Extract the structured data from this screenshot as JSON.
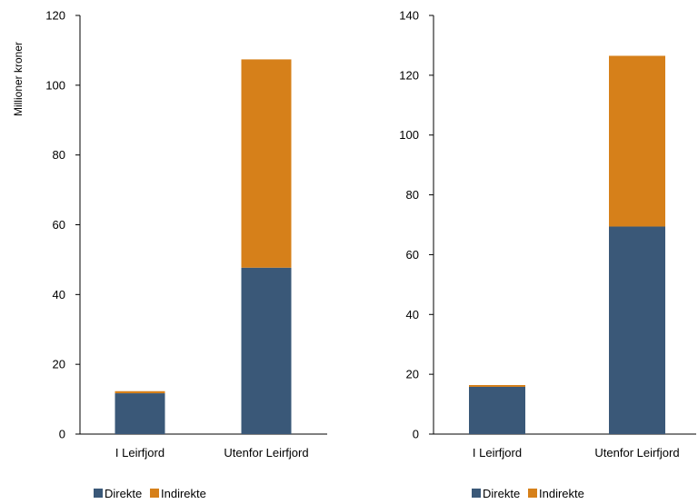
{
  "colors": {
    "direkte": "#3a5878",
    "indirekte": "#d6801a",
    "axis": "#000000"
  },
  "chart_data": [
    {
      "type": "bar",
      "stacked": true,
      "categories": [
        "I Leirfjord",
        "Utenfor Leirfjord"
      ],
      "series": [
        {
          "name": "Direkte",
          "values": [
            11.7,
            47.7
          ]
        },
        {
          "name": "Indirekte",
          "values": [
            0.6,
            59.7
          ]
        }
      ],
      "ylabel": "Millioner kroner",
      "ylim": [
        0,
        120
      ],
      "yticks": [
        0,
        20,
        40,
        60,
        80,
        100,
        120
      ],
      "legend": "bottom",
      "grid": false
    },
    {
      "type": "bar",
      "stacked": true,
      "categories": [
        "I Leirfjord",
        "Utenfor Leirfjord"
      ],
      "series": [
        {
          "name": "Direkte",
          "values": [
            15.8,
            69.4
          ]
        },
        {
          "name": "Indirekte",
          "values": [
            0.6,
            57.1
          ]
        }
      ],
      "ylabel": "",
      "ylim": [
        0,
        140
      ],
      "yticks": [
        0,
        20,
        40,
        60,
        80,
        100,
        120,
        140
      ],
      "legend": "bottom",
      "grid": false
    }
  ]
}
